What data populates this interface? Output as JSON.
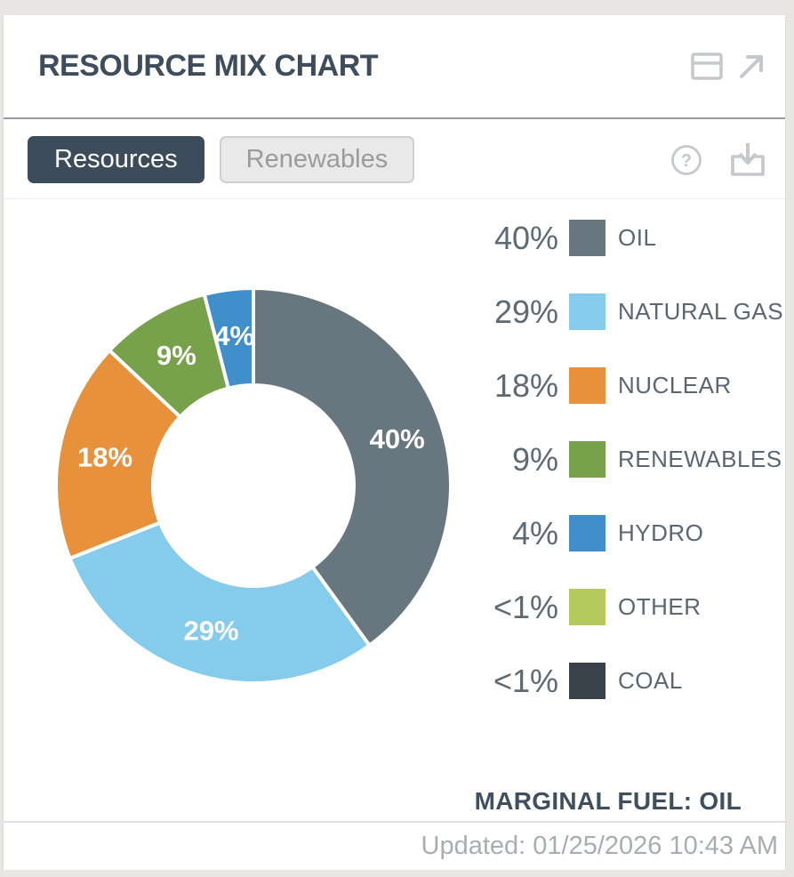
{
  "header": {
    "title": "RESOURCE MIX CHART",
    "icons": [
      "window-panel-icon",
      "external-link-icon"
    ]
  },
  "tabs": {
    "resources": "Resources",
    "renewables": "Renewables",
    "active_tab": "Resources"
  },
  "toolbar_icons": [
    "help-icon",
    "download-icon"
  ],
  "ui": {
    "accent_dark": "#3d4c5a",
    "panel_bg": "#ffffff",
    "outer_bg": "#e7e6e2",
    "icon_gray": "#c5c8cc"
  },
  "chart_data": {
    "type": "pie",
    "subtype": "donut",
    "title": "RESOURCE MIX CHART",
    "direction": "clockwise",
    "start_angle_deg": 0,
    "donut_hole_ratio": 0.51,
    "legend_position": "right",
    "series": [
      {
        "label": "OIL",
        "pct_display": "40%",
        "value": 40,
        "color": "#68767f",
        "slice_label_shown": true
      },
      {
        "label": "NATURAL GAS",
        "pct_display": "29%",
        "value": 29,
        "color": "#85cbec",
        "slice_label_shown": true
      },
      {
        "label": "NUCLEAR",
        "pct_display": "18%",
        "value": 18,
        "color": "#e7913c",
        "slice_label_shown": true
      },
      {
        "label": "RENEWABLES",
        "pct_display": "9%",
        "value": 9,
        "color": "#77a14a",
        "slice_label_shown": true
      },
      {
        "label": "HYDRO",
        "pct_display": "4%",
        "value": 4,
        "color": "#418fca",
        "slice_label_shown": true
      },
      {
        "label": "OTHER",
        "pct_display": "<1%",
        "value": 0,
        "color": "#b5c95f",
        "slice_label_shown": false
      },
      {
        "label": "COAL",
        "pct_display": "<1%",
        "value": 0,
        "color": "#39424b",
        "slice_label_shown": false
      }
    ],
    "annotation": "MARGINAL FUEL: OIL"
  },
  "footer": {
    "updated": "Updated: 01/25/2026 10:43 AM"
  }
}
